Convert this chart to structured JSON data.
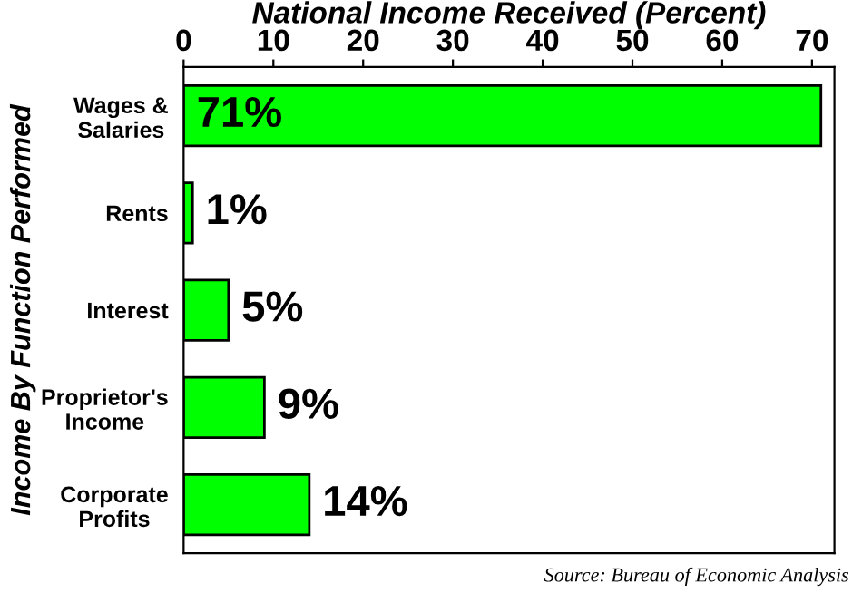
{
  "chart_data": {
    "type": "bar",
    "orientation": "horizontal",
    "title": "National Income Received (Percent)",
    "ylabel": "Income By Function Performed",
    "categories": [
      "Wages &\nSalaries",
      "Rents",
      "Interest",
      "Proprietor's\nIncome",
      "Corporate\nProfits"
    ],
    "values": [
      71,
      1,
      5,
      9,
      14
    ],
    "value_labels": [
      "71%",
      "1%",
      "5%",
      "9%",
      "14%"
    ],
    "color": "#00ff00",
    "xlim": [
      0,
      72.5
    ],
    "xticks": [
      0,
      10,
      20,
      30,
      40,
      50,
      60,
      70
    ],
    "grid": false,
    "annotations": [
      "Source: Bureau of Economic Analysis"
    ]
  }
}
